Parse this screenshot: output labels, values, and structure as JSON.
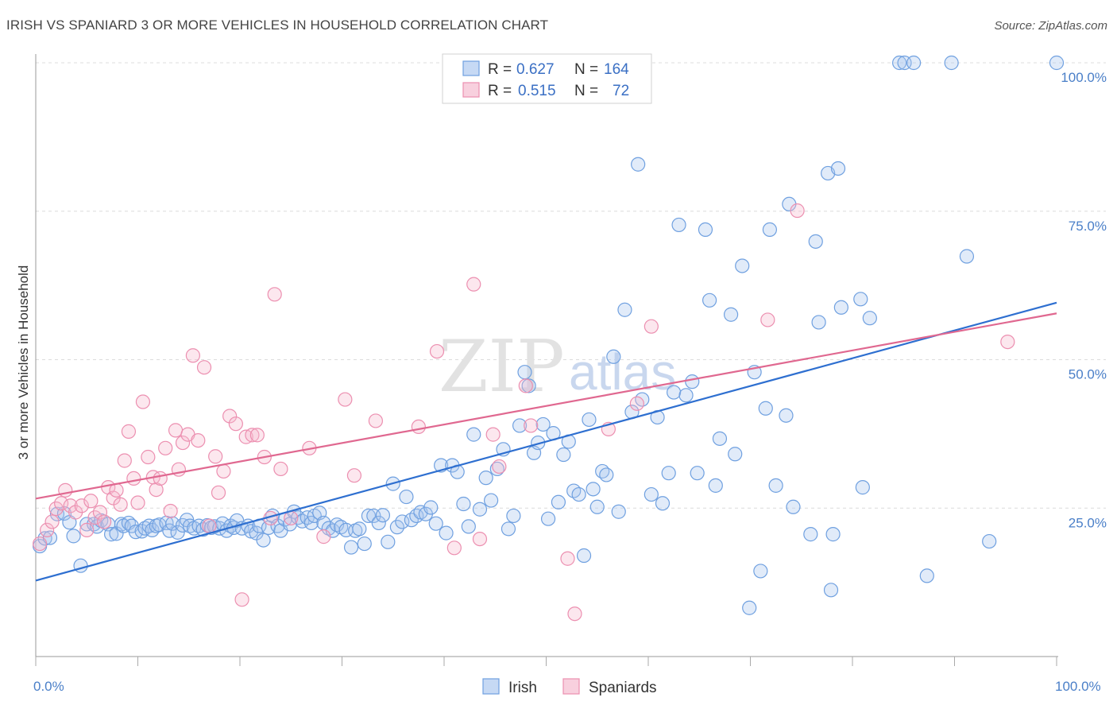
{
  "header": {
    "title": "IRISH VS SPANIARD 3 OR MORE VEHICLES IN HOUSEHOLD CORRELATION CHART",
    "source": "Source: ZipAtlas.com"
  },
  "watermark": {
    "zip": "ZIP",
    "atlas": "atlas"
  },
  "legend_top": {
    "rows": [
      {
        "r_label": "R =",
        "r_value": "0.627",
        "n_label": "N =",
        "n_value": "164",
        "color": "#6fa0e0"
      },
      {
        "r_label": "R =",
        "r_value": "0.515",
        "n_label": "N =",
        "n_value": "72",
        "color": "#ec8fb0"
      }
    ]
  },
  "legend_bottom": {
    "items": [
      {
        "label": "Irish",
        "color": "#6fa0e0"
      },
      {
        "label": "Spaniards",
        "color": "#ec8fb0"
      }
    ]
  },
  "chart_data": {
    "type": "scatter",
    "title": "IRISH VS SPANIARD 3 OR MORE VEHICLES IN HOUSEHOLD CORRELATION CHART",
    "xlabel": "",
    "ylabel": "3 or more Vehicles in Household",
    "xlim": [
      0,
      100
    ],
    "ylim": [
      0,
      102
    ],
    "x_tick_labels": [
      "0.0%",
      "100.0%"
    ],
    "y_ticks": [
      25,
      50,
      75,
      100
    ],
    "y_tick_labels": [
      "25.0%",
      "50.0%",
      "75.0%",
      "100.0%"
    ],
    "grid": true,
    "legend_position": "top-center",
    "series": [
      {
        "name": "Irish",
        "color": "#6fa0e0",
        "trend": {
          "x": [
            0,
            100
          ],
          "y": [
            12.8,
            59.6
          ]
        },
        "points": [
          [
            0.4,
            18.6
          ],
          [
            0.9,
            19.9
          ],
          [
            1.4,
            20.0
          ],
          [
            2.1,
            24.0
          ],
          [
            2.8,
            24.1
          ],
          [
            3.3,
            22.6
          ],
          [
            3.7,
            20.3
          ],
          [
            4.4,
            15.3
          ],
          [
            5.0,
            22.3
          ],
          [
            5.7,
            22.3
          ],
          [
            6.0,
            21.9
          ],
          [
            6.4,
            22.9
          ],
          [
            7.1,
            22.3
          ],
          [
            7.4,
            20.6
          ],
          [
            7.9,
            20.7
          ],
          [
            8.4,
            22.3
          ],
          [
            8.6,
            22.0
          ],
          [
            9.1,
            22.5
          ],
          [
            9.4,
            22.0
          ],
          [
            9.8,
            21.0
          ],
          [
            10.4,
            21.1
          ],
          [
            10.7,
            21.6
          ],
          [
            11.1,
            22.0
          ],
          [
            11.4,
            21.3
          ],
          [
            11.8,
            22.0
          ],
          [
            12.1,
            22.2
          ],
          [
            12.8,
            22.5
          ],
          [
            13.1,
            21.2
          ],
          [
            13.4,
            22.4
          ],
          [
            13.9,
            20.9
          ],
          [
            14.4,
            22.1
          ],
          [
            14.8,
            23.0
          ],
          [
            15.1,
            22.0
          ],
          [
            15.5,
            21.6
          ],
          [
            16.0,
            22.0
          ],
          [
            16.4,
            21.4
          ],
          [
            16.8,
            22.1
          ],
          [
            17.2,
            21.7
          ],
          [
            17.5,
            21.9
          ],
          [
            18.0,
            21.6
          ],
          [
            18.3,
            22.4
          ],
          [
            18.7,
            21.2
          ],
          [
            19.1,
            22.0
          ],
          [
            19.4,
            21.7
          ],
          [
            19.7,
            22.9
          ],
          [
            20.2,
            21.6
          ],
          [
            20.8,
            22.0
          ],
          [
            21.1,
            21.1
          ],
          [
            21.6,
            20.8
          ],
          [
            21.9,
            22.0
          ],
          [
            22.3,
            19.6
          ],
          [
            22.8,
            21.7
          ],
          [
            23.2,
            23.7
          ],
          [
            23.7,
            22.0
          ],
          [
            24.0,
            21.2
          ],
          [
            24.4,
            23.1
          ],
          [
            24.9,
            22.3
          ],
          [
            25.3,
            24.4
          ],
          [
            25.7,
            23.4
          ],
          [
            26.1,
            22.8
          ],
          [
            26.6,
            23.4
          ],
          [
            27.0,
            22.5
          ],
          [
            27.3,
            23.7
          ],
          [
            27.8,
            24.2
          ],
          [
            28.2,
            22.5
          ],
          [
            28.7,
            21.6
          ],
          [
            29.1,
            21.2
          ],
          [
            29.5,
            22.2
          ],
          [
            29.9,
            21.8
          ],
          [
            30.4,
            21.3
          ],
          [
            30.9,
            18.4
          ],
          [
            31.3,
            21.2
          ],
          [
            31.7,
            21.5
          ],
          [
            32.2,
            19.0
          ],
          [
            32.6,
            23.7
          ],
          [
            33.1,
            23.7
          ],
          [
            33.6,
            22.5
          ],
          [
            34.0,
            23.8
          ],
          [
            34.5,
            19.3
          ],
          [
            35.0,
            29.1
          ],
          [
            35.4,
            21.8
          ],
          [
            35.9,
            22.7
          ],
          [
            36.3,
            26.9
          ],
          [
            36.8,
            23.0
          ],
          [
            37.3,
            23.7
          ],
          [
            37.7,
            24.3
          ],
          [
            38.2,
            24.0
          ],
          [
            38.7,
            25.1
          ],
          [
            39.2,
            22.4
          ],
          [
            39.7,
            32.2
          ],
          [
            40.2,
            20.8
          ],
          [
            40.8,
            32.2
          ],
          [
            41.3,
            31.1
          ],
          [
            41.9,
            25.7
          ],
          [
            42.4,
            21.9
          ],
          [
            42.9,
            37.4
          ],
          [
            43.5,
            24.8
          ],
          [
            44.1,
            30.1
          ],
          [
            44.6,
            26.3
          ],
          [
            45.2,
            31.6
          ],
          [
            45.8,
            34.9
          ],
          [
            46.3,
            21.5
          ],
          [
            46.8,
            23.7
          ],
          [
            47.4,
            38.9
          ],
          [
            47.9,
            47.9
          ],
          [
            48.3,
            45.6
          ],
          [
            48.8,
            34.3
          ],
          [
            49.2,
            36.0
          ],
          [
            49.7,
            39.1
          ],
          [
            50.2,
            23.2
          ],
          [
            50.7,
            37.6
          ],
          [
            51.2,
            26.0
          ],
          [
            51.7,
            34.0
          ],
          [
            52.2,
            36.2
          ],
          [
            52.7,
            27.9
          ],
          [
            53.2,
            27.3
          ],
          [
            53.7,
            17.0
          ],
          [
            54.2,
            39.9
          ],
          [
            54.6,
            28.2
          ],
          [
            55.0,
            25.2
          ],
          [
            55.5,
            31.2
          ],
          [
            55.9,
            30.6
          ],
          [
            56.6,
            50.5
          ],
          [
            57.1,
            24.4
          ],
          [
            57.7,
            58.4
          ],
          [
            58.4,
            41.2
          ],
          [
            59.0,
            82.9
          ],
          [
            59.4,
            43.3
          ],
          [
            60.3,
            27.3
          ],
          [
            60.9,
            40.3
          ],
          [
            61.4,
            25.8
          ],
          [
            62.0,
            30.9
          ],
          [
            62.5,
            44.5
          ],
          [
            63.0,
            72.7
          ],
          [
            63.7,
            44.0
          ],
          [
            64.3,
            46.3
          ],
          [
            64.8,
            30.9
          ],
          [
            65.6,
            71.9
          ],
          [
            66.0,
            60.0
          ],
          [
            66.6,
            28.8
          ],
          [
            67.0,
            36.7
          ],
          [
            68.1,
            57.6
          ],
          [
            68.5,
            34.1
          ],
          [
            69.2,
            65.8
          ],
          [
            69.9,
            8.2
          ],
          [
            70.4,
            47.9
          ],
          [
            71.0,
            14.4
          ],
          [
            71.5,
            41.8
          ],
          [
            71.9,
            71.9
          ],
          [
            72.5,
            28.8
          ],
          [
            73.5,
            40.6
          ],
          [
            73.8,
            76.2
          ],
          [
            74.2,
            25.2
          ],
          [
            75.9,
            20.6
          ],
          [
            76.4,
            69.9
          ],
          [
            76.7,
            56.3
          ],
          [
            77.6,
            81.4
          ],
          [
            77.9,
            11.2
          ],
          [
            78.1,
            20.6
          ],
          [
            78.6,
            82.2
          ],
          [
            78.9,
            58.8
          ],
          [
            80.8,
            60.2
          ],
          [
            81.0,
            28.5
          ],
          [
            81.7,
            57.0
          ],
          [
            84.6,
            100.0
          ],
          [
            85.1,
            100.0
          ],
          [
            86.0,
            100.0
          ],
          [
            87.3,
            13.6
          ],
          [
            89.7,
            100.0
          ],
          [
            91.2,
            67.4
          ],
          [
            93.4,
            19.4
          ],
          [
            100.0,
            100.0
          ]
        ]
      },
      {
        "name": "Spaniards",
        "color": "#ec8fb0",
        "trend": {
          "x": [
            0,
            100
          ],
          "y": [
            26.6,
            57.8
          ]
        },
        "points": [
          [
            0.4,
            19.0
          ],
          [
            1.1,
            21.3
          ],
          [
            1.6,
            22.7
          ],
          [
            2.0,
            24.9
          ],
          [
            2.5,
            25.8
          ],
          [
            2.9,
            28.0
          ],
          [
            3.4,
            25.4
          ],
          [
            3.9,
            24.3
          ],
          [
            4.5,
            25.4
          ],
          [
            5.0,
            21.3
          ],
          [
            5.4,
            26.2
          ],
          [
            5.8,
            23.4
          ],
          [
            6.3,
            24.3
          ],
          [
            6.7,
            22.7
          ],
          [
            7.1,
            28.5
          ],
          [
            7.6,
            26.7
          ],
          [
            7.9,
            28.0
          ],
          [
            8.3,
            25.6
          ],
          [
            8.7,
            33.0
          ],
          [
            9.1,
            37.9
          ],
          [
            9.6,
            30.0
          ],
          [
            10.0,
            25.9
          ],
          [
            10.5,
            42.9
          ],
          [
            11.0,
            33.6
          ],
          [
            11.5,
            30.2
          ],
          [
            11.8,
            28.1
          ],
          [
            12.2,
            30.0
          ],
          [
            12.7,
            35.1
          ],
          [
            13.2,
            24.5
          ],
          [
            13.7,
            38.1
          ],
          [
            14.0,
            31.5
          ],
          [
            14.4,
            36.0
          ],
          [
            14.9,
            37.4
          ],
          [
            15.4,
            50.7
          ],
          [
            15.9,
            36.4
          ],
          [
            16.5,
            48.7
          ],
          [
            17.0,
            22.0
          ],
          [
            17.6,
            33.7
          ],
          [
            17.9,
            27.6
          ],
          [
            18.4,
            31.2
          ],
          [
            19.0,
            40.5
          ],
          [
            19.6,
            39.2
          ],
          [
            20.2,
            9.6
          ],
          [
            20.6,
            37.0
          ],
          [
            21.2,
            37.3
          ],
          [
            21.7,
            37.3
          ],
          [
            22.4,
            33.6
          ],
          [
            23.0,
            23.3
          ],
          [
            23.4,
            61.0
          ],
          [
            24.0,
            31.6
          ],
          [
            25.0,
            23.3
          ],
          [
            26.8,
            35.1
          ],
          [
            28.2,
            20.2
          ],
          [
            30.3,
            43.3
          ],
          [
            31.2,
            30.5
          ],
          [
            33.3,
            39.7
          ],
          [
            37.5,
            38.7
          ],
          [
            39.3,
            51.4
          ],
          [
            41.0,
            18.3
          ],
          [
            42.9,
            62.7
          ],
          [
            43.5,
            19.8
          ],
          [
            44.8,
            37.4
          ],
          [
            45.4,
            32.0
          ],
          [
            48.0,
            45.6
          ],
          [
            48.5,
            38.9
          ],
          [
            52.1,
            16.5
          ],
          [
            52.8,
            7.2
          ],
          [
            56.1,
            38.3
          ],
          [
            58.9,
            42.6
          ],
          [
            60.3,
            55.6
          ],
          [
            71.7,
            56.7
          ],
          [
            74.6,
            75.1
          ],
          [
            95.2,
            53.0
          ]
        ]
      }
    ]
  }
}
